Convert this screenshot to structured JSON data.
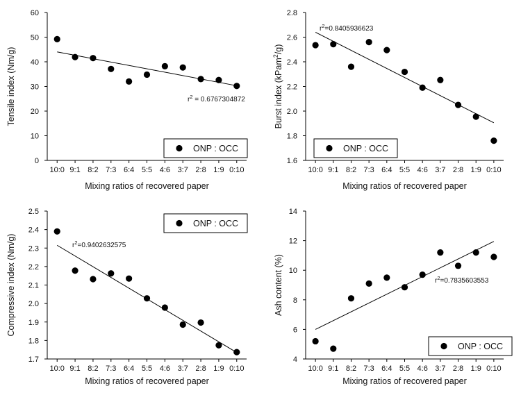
{
  "chart_data": [
    {
      "type": "scatter",
      "id": "tensile",
      "categories": [
        "10:0",
        "9:1",
        "8:2",
        "7:3",
        "6:4",
        "5:5",
        "4:6",
        "3:7",
        "2:8",
        "1:9",
        "0:10"
      ],
      "series": [
        {
          "name": "ONP : OCC",
          "values": [
            49.2,
            41.9,
            41.5,
            37.1,
            32.0,
            34.8,
            38.2,
            37.7,
            33.0,
            32.6,
            30.2
          ]
        }
      ],
      "fit": {
        "start": 44.0,
        "end": 30.3
      },
      "r2_label": "r",
      "r2_sup": "2",
      "r2_value": " = 0.6767304872",
      "xlabel": "Mixing ratios of recovered paper",
      "ylabel": "Tensile index (Nm/g)",
      "ylim": [
        0,
        60
      ],
      "yticks": [
        "0",
        "10",
        "20",
        "30",
        "40",
        "50",
        "60"
      ],
      "legend_position": "bottom-right"
    },
    {
      "type": "scatter",
      "id": "burst",
      "categories": [
        "10:0",
        "9:1",
        "8:2",
        "7:3",
        "6:4",
        "5:5",
        "4:6",
        "3:7",
        "2:8",
        "1:9",
        "0:10"
      ],
      "series": [
        {
          "name": "ONP : OCC",
          "values": [
            2.535,
            2.543,
            2.36,
            2.56,
            2.495,
            2.318,
            2.19,
            2.252,
            2.05,
            1.955,
            1.76
          ]
        }
      ],
      "fit": {
        "start": 2.64,
        "end": 1.905
      },
      "r2_label": "r",
      "r2_sup": "2",
      "r2_value": "=0.8405936623",
      "xlabel": "Mixing ratios of recovered paper",
      "ylabel_main": "Burst index (kPam",
      "ylabel_sup": "2",
      "ylabel_end": "/g)",
      "ylim": [
        1.6,
        2.8
      ],
      "yticks": [
        "1.6",
        "1.8",
        "2.0",
        "2.2",
        "2.4",
        "2.6",
        "2.8"
      ],
      "legend_position": "bottom-right"
    },
    {
      "type": "scatter",
      "id": "compressive",
      "categories": [
        "10:0",
        "9:1",
        "8:2",
        "7:3",
        "6:4",
        "5:5",
        "4:6",
        "3:7",
        "2:8",
        "1:9",
        "0:10"
      ],
      "series": [
        {
          "name": "ONP : OCC",
          "values": [
            2.39,
            2.178,
            2.132,
            2.163,
            2.135,
            2.028,
            1.978,
            1.886,
            1.897,
            1.774,
            1.737
          ]
        }
      ],
      "fit": {
        "start": 2.315,
        "end": 1.735
      },
      "r2_label": "r",
      "r2_sup": "2",
      "r2_value": "=0.9402632575",
      "xlabel": "Mixing ratios of recovered paper",
      "ylabel": "Compressive index (Nm/g)",
      "ylim": [
        1.7,
        2.5
      ],
      "yticks": [
        "1.7",
        "1.8",
        "1.9",
        "2.0",
        "2.1",
        "2.2",
        "2.3",
        "2.4",
        "2.5"
      ],
      "legend_position": "top-right"
    },
    {
      "type": "scatter",
      "id": "ash",
      "categories": [
        "10:0",
        "9:1",
        "8:2",
        "7:3",
        "6:4",
        "5:5",
        "4:6",
        "3:7",
        "2:8",
        "1:9",
        "0:10"
      ],
      "series": [
        {
          "name": "ONP : OCC",
          "values": [
            5.2,
            4.7,
            8.1,
            9.1,
            9.5,
            8.85,
            9.7,
            11.2,
            10.3,
            11.2,
            10.9
          ]
        }
      ],
      "fit": {
        "start": 6.0,
        "end": 11.95
      },
      "r2_label": "r",
      "r2_sup": "2",
      "r2_value": "=0.7835603553",
      "xlabel": "Mixing ratios of recovered paper",
      "ylabel": "Ash content (%)",
      "ylim": [
        4,
        14
      ],
      "yticks": [
        "4",
        "6",
        "8",
        "10",
        "12",
        "14"
      ],
      "legend_position": "bottom-right"
    }
  ]
}
